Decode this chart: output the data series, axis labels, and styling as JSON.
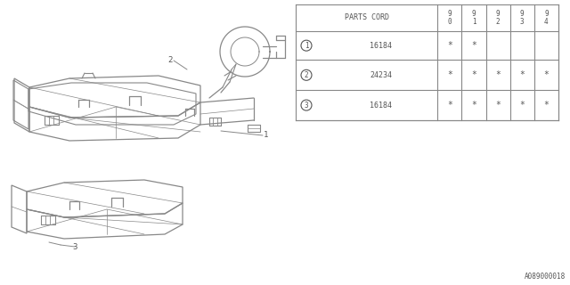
{
  "diagram_id": "A089000018",
  "table": {
    "rows": [
      {
        "num": "1",
        "part": "16184",
        "years": [
          "*",
          "*",
          "",
          "",
          ""
        ]
      },
      {
        "num": "2",
        "part": "24234",
        "years": [
          "*",
          "*",
          "*",
          "*",
          "*"
        ]
      },
      {
        "num": "3",
        "part": "16184",
        "years": [
          "*",
          "*",
          "*",
          "*",
          "*"
        ]
      }
    ]
  },
  "bg_color": "#ffffff",
  "line_color": "#888888",
  "text_color": "#555555"
}
